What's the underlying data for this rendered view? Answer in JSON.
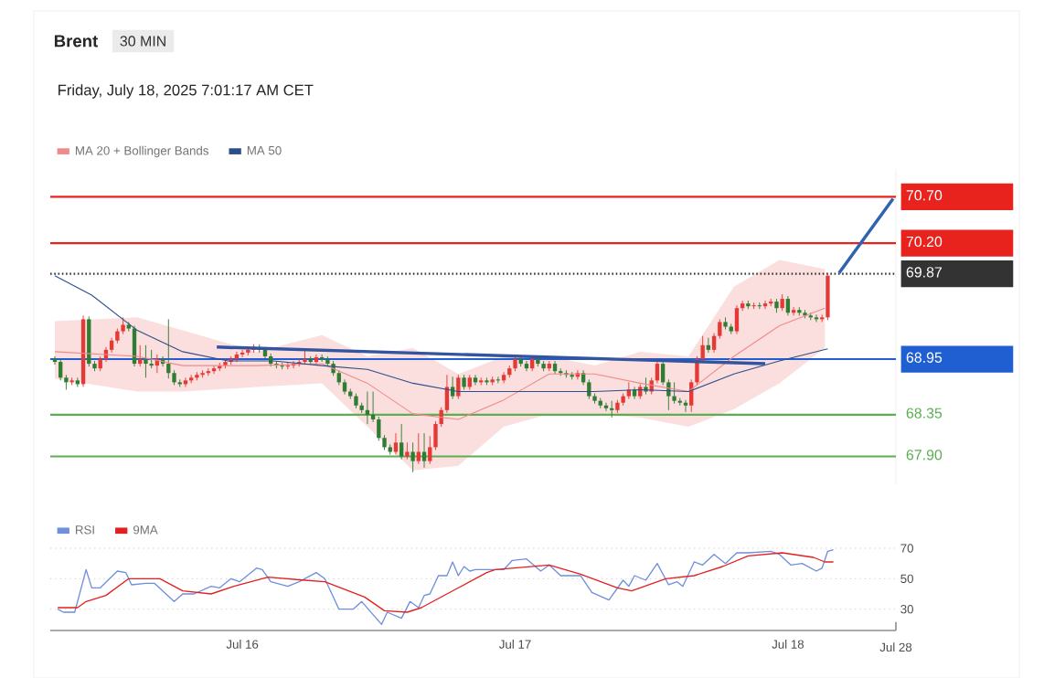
{
  "chart_data": [
    {
      "type": "candlestick",
      "title": "Brent",
      "subtitle": "Friday, July 18, 2025 7:01:17 AM CET",
      "annotations": [
        "30 MIN"
      ],
      "x": [
        "2025-07-15T07:30",
        "2025-07-15T08:00",
        "2025-07-15T08:30",
        "2025-07-15T09:00",
        "2025-07-15T09:30",
        "2025-07-15T10:00",
        "2025-07-15T10:30",
        "2025-07-15T11:00",
        "2025-07-15T11:30",
        "2025-07-15T12:00",
        "2025-07-15T12:30",
        "2025-07-15T13:00",
        "2025-07-15T13:30",
        "2025-07-15T14:00",
        "2025-07-15T14:30",
        "2025-07-15T15:00",
        "2025-07-15T15:30",
        "2025-07-15T16:00",
        "2025-07-15T16:30",
        "2025-07-15T17:00",
        "2025-07-15T17:30",
        "2025-07-15T18:00",
        "2025-07-15T18:30",
        "2025-07-15T19:00",
        "2025-07-15T19:30",
        "2025-07-15T20:00",
        "2025-07-15T20:30",
        "2025-07-15T21:00",
        "2025-07-15T21:30",
        "2025-07-15T22:00",
        "2025-07-15T22:30",
        "2025-07-15T23:00",
        "2025-07-15T23:30",
        "2025-07-16T00:00",
        "2025-07-16T00:30",
        "2025-07-16T01:00",
        "2025-07-16T01:30",
        "2025-07-16T02:00",
        "2025-07-16T02:30",
        "2025-07-16T03:00",
        "2025-07-16T03:30",
        "2025-07-16T04:00",
        "2025-07-16T04:30",
        "2025-07-16T05:00",
        "2025-07-16T05:30",
        "2025-07-16T06:00",
        "2025-07-16T06:30",
        "2025-07-16T07:00",
        "2025-07-16T07:30",
        "2025-07-16T08:00",
        "2025-07-16T08:30",
        "2025-07-16T09:00",
        "2025-07-16T09:30",
        "2025-07-16T10:00",
        "2025-07-16T10:30",
        "2025-07-16T11:00",
        "2025-07-16T11:30",
        "2025-07-16T12:00",
        "2025-07-16T12:30",
        "2025-07-16T13:00",
        "2025-07-16T13:30",
        "2025-07-16T14:00",
        "2025-07-16T14:30",
        "2025-07-16T15:00",
        "2025-07-16T15:30",
        "2025-07-16T16:00",
        "2025-07-16T16:30",
        "2025-07-16T17:00",
        "2025-07-16T17:30",
        "2025-07-16T18:00",
        "2025-07-16T18:30",
        "2025-07-16T19:00",
        "2025-07-16T19:30",
        "2025-07-16T20:00",
        "2025-07-16T20:30",
        "2025-07-16T21:00",
        "2025-07-16T21:30",
        "2025-07-16T22:00",
        "2025-07-16T22:30",
        "2025-07-16T23:00",
        "2025-07-16T23:30",
        "2025-07-17T00:00",
        "2025-07-17T00:30",
        "2025-07-17T01:00",
        "2025-07-17T01:30",
        "2025-07-17T02:00",
        "2025-07-17T02:30",
        "2025-07-17T03:00",
        "2025-07-17T03:30",
        "2025-07-17T04:00",
        "2025-07-17T04:30",
        "2025-07-17T05:00",
        "2025-07-17T05:30",
        "2025-07-17T06:00",
        "2025-07-17T06:30",
        "2025-07-17T07:00",
        "2025-07-17T07:30",
        "2025-07-17T08:00",
        "2025-07-17T08:30",
        "2025-07-17T09:00",
        "2025-07-17T09:30",
        "2025-07-17T10:00",
        "2025-07-17T10:30",
        "2025-07-17T11:00",
        "2025-07-17T11:30",
        "2025-07-17T12:00",
        "2025-07-17T12:30",
        "2025-07-17T13:00",
        "2025-07-17T13:30",
        "2025-07-17T14:00",
        "2025-07-17T14:30",
        "2025-07-17T15:00",
        "2025-07-17T15:30",
        "2025-07-17T16:00",
        "2025-07-17T16:30",
        "2025-07-17T17:00",
        "2025-07-17T17:30",
        "2025-07-17T18:00",
        "2025-07-17T18:30",
        "2025-07-17T19:00",
        "2025-07-17T19:30",
        "2025-07-17T20:00",
        "2025-07-17T20:30",
        "2025-07-17T21:00",
        "2025-07-17T21:30",
        "2025-07-17T22:00",
        "2025-07-17T22:30",
        "2025-07-17T23:00",
        "2025-07-17T23:30",
        "2025-07-18T00:00",
        "2025-07-18T00:30",
        "2025-07-18T01:00",
        "2025-07-18T01:30",
        "2025-07-18T02:00",
        "2025-07-18T02:30",
        "2025-07-18T03:00",
        "2025-07-18T03:30"
      ],
      "ohlc": [
        [
          68.95,
          68.98,
          68.89,
          68.92
        ],
        [
          68.92,
          68.95,
          68.72,
          68.75
        ],
        [
          68.75,
          68.78,
          68.62,
          68.7
        ],
        [
          68.7,
          68.75,
          68.67,
          68.72
        ],
        [
          68.72,
          68.75,
          68.65,
          68.68
        ],
        [
          68.68,
          69.42,
          68.65,
          69.38
        ],
        [
          69.38,
          69.41,
          68.87,
          68.9
        ],
        [
          68.9,
          68.93,
          68.82,
          68.85
        ],
        [
          68.85,
          68.98,
          68.82,
          68.95
        ],
        [
          68.95,
          69.08,
          68.92,
          69.05
        ],
        [
          69.05,
          69.18,
          69.02,
          69.15
        ],
        [
          69.15,
          69.28,
          69.12,
          69.25
        ],
        [
          69.25,
          69.4,
          69.22,
          69.32
        ],
        [
          69.32,
          69.35,
          69.25,
          69.28
        ],
        [
          69.28,
          69.31,
          68.87,
          68.9
        ],
        [
          68.9,
          69.1,
          68.87,
          68.95
        ],
        [
          68.95,
          69.1,
          68.75,
          68.9
        ],
        [
          68.9,
          69.05,
          68.85,
          68.88
        ],
        [
          68.88,
          69.0,
          68.8,
          68.95
        ],
        [
          68.95,
          68.98,
          68.87,
          68.9
        ],
        [
          68.9,
          69.38,
          68.74,
          68.8
        ],
        [
          68.8,
          68.83,
          68.67,
          68.7
        ],
        [
          68.7,
          68.73,
          68.65,
          68.68
        ],
        [
          68.68,
          68.75,
          68.65,
          68.72
        ],
        [
          68.72,
          68.78,
          68.69,
          68.75
        ],
        [
          68.75,
          68.81,
          68.72,
          68.78
        ],
        [
          68.78,
          68.83,
          68.75,
          68.8
        ],
        [
          68.8,
          68.85,
          68.77,
          68.82
        ],
        [
          68.82,
          68.88,
          68.79,
          68.85
        ],
        [
          68.85,
          68.91,
          68.82,
          68.88
        ],
        [
          68.88,
          68.95,
          68.85,
          68.92
        ],
        [
          68.92,
          68.98,
          68.89,
          68.95
        ],
        [
          68.95,
          69.03,
          68.92,
          69.0
        ],
        [
          69.0,
          69.05,
          68.97,
          69.02
        ],
        [
          69.02,
          69.08,
          68.99,
          69.05
        ],
        [
          69.05,
          69.11,
          69.02,
          69.08
        ],
        [
          69.08,
          69.11,
          69.02,
          69.05
        ],
        [
          69.05,
          69.08,
          68.95,
          68.98
        ],
        [
          68.98,
          69.01,
          68.87,
          68.9
        ],
        [
          68.9,
          68.93,
          68.85,
          68.88
        ],
        [
          68.88,
          68.91,
          68.84,
          68.87
        ],
        [
          68.87,
          68.91,
          68.84,
          68.88
        ],
        [
          68.88,
          68.93,
          68.85,
          68.9
        ],
        [
          68.9,
          68.95,
          68.87,
          68.92
        ],
        [
          68.92,
          69.05,
          68.89,
          68.95
        ],
        [
          68.95,
          68.98,
          68.89,
          68.92
        ],
        [
          68.92,
          69.0,
          68.89,
          68.97
        ],
        [
          68.97,
          69.0,
          68.92,
          68.95
        ],
        [
          68.95,
          68.98,
          68.87,
          68.9
        ],
        [
          68.9,
          68.93,
          68.77,
          68.8
        ],
        [
          68.8,
          68.83,
          68.67,
          68.7
        ],
        [
          68.7,
          68.73,
          68.57,
          68.6
        ],
        [
          68.6,
          68.63,
          68.52,
          68.55
        ],
        [
          68.55,
          68.58,
          68.42,
          68.45
        ],
        [
          68.45,
          68.48,
          68.37,
          68.4
        ],
        [
          68.4,
          68.6,
          68.25,
          68.35
        ],
        [
          68.35,
          68.6,
          68.27,
          68.3
        ],
        [
          68.3,
          68.33,
          68.07,
          68.1
        ],
        [
          68.1,
          68.13,
          67.97,
          68.0
        ],
        [
          68.0,
          68.03,
          67.92,
          67.95
        ],
        [
          67.95,
          68.15,
          67.92,
          68.05
        ],
        [
          68.05,
          68.25,
          67.87,
          67.9
        ],
        [
          67.9,
          68.05,
          67.87,
          67.95
        ],
        [
          67.95,
          68.05,
          67.73,
          67.85
        ],
        [
          67.85,
          68.15,
          67.82,
          67.95
        ],
        [
          67.95,
          68.15,
          67.78,
          67.85
        ],
        [
          67.85,
          68.12,
          67.82,
          68.0
        ],
        [
          68.0,
          68.28,
          67.97,
          68.25
        ],
        [
          68.25,
          68.43,
          68.22,
          68.4
        ],
        [
          68.4,
          68.78,
          68.37,
          68.65
        ],
        [
          68.65,
          68.76,
          68.52,
          68.55
        ],
        [
          68.55,
          68.78,
          68.52,
          68.75
        ],
        [
          68.75,
          68.78,
          68.62,
          68.65
        ],
        [
          68.65,
          68.78,
          68.62,
          68.75
        ],
        [
          68.75,
          68.78,
          68.67,
          68.7
        ],
        [
          68.7,
          68.75,
          68.67,
          68.72
        ],
        [
          68.72,
          68.75,
          68.67,
          68.7
        ],
        [
          68.7,
          68.76,
          68.67,
          68.73
        ],
        [
          68.73,
          68.76,
          68.69,
          68.72
        ],
        [
          68.72,
          68.81,
          68.69,
          68.78
        ],
        [
          68.78,
          68.88,
          68.75,
          68.85
        ],
        [
          68.85,
          68.98,
          68.82,
          68.95
        ],
        [
          68.95,
          68.98,
          68.87,
          68.9
        ],
        [
          68.9,
          68.93,
          68.82,
          68.85
        ],
        [
          68.85,
          68.98,
          68.82,
          68.95
        ],
        [
          68.95,
          68.98,
          68.87,
          68.9
        ],
        [
          68.9,
          68.93,
          68.82,
          68.85
        ],
        [
          68.85,
          68.93,
          68.82,
          68.9
        ],
        [
          68.9,
          68.93,
          68.79,
          68.82
        ],
        [
          68.82,
          68.85,
          68.77,
          68.8
        ],
        [
          68.8,
          68.83,
          68.75,
          68.78
        ],
        [
          68.78,
          68.81,
          68.73,
          68.76
        ],
        [
          68.76,
          68.83,
          68.73,
          68.8
        ],
        [
          68.8,
          68.83,
          68.67,
          68.7
        ],
        [
          68.7,
          68.73,
          68.52,
          68.55
        ],
        [
          68.55,
          68.58,
          68.47,
          68.5
        ],
        [
          68.5,
          68.53,
          68.42,
          68.45
        ],
        [
          68.45,
          68.48,
          68.39,
          68.42
        ],
        [
          68.42,
          68.5,
          68.32,
          68.4
        ],
        [
          68.4,
          68.51,
          68.37,
          68.48
        ],
        [
          68.48,
          68.58,
          68.45,
          68.55
        ],
        [
          68.55,
          68.7,
          68.52,
          68.62
        ],
        [
          68.62,
          68.65,
          68.52,
          68.55
        ],
        [
          68.55,
          68.68,
          68.52,
          68.65
        ],
        [
          68.65,
          68.75,
          68.57,
          68.6
        ],
        [
          68.6,
          68.75,
          68.57,
          68.72
        ],
        [
          68.72,
          68.93,
          68.69,
          68.9
        ],
        [
          68.9,
          68.93,
          68.67,
          68.7
        ],
        [
          68.7,
          68.73,
          68.4,
          68.55
        ],
        [
          68.55,
          68.7,
          68.47,
          68.5
        ],
        [
          68.5,
          68.53,
          68.45,
          68.48
        ],
        [
          68.48,
          68.51,
          68.38,
          68.45
        ],
        [
          68.45,
          68.73,
          68.38,
          68.7
        ],
        [
          68.7,
          68.98,
          68.67,
          68.95
        ],
        [
          68.95,
          69.2,
          68.92,
          69.1
        ],
        [
          69.1,
          69.18,
          69.02,
          69.05
        ],
        [
          69.05,
          69.23,
          69.02,
          69.2
        ],
        [
          69.2,
          69.38,
          69.17,
          69.35
        ],
        [
          69.35,
          69.4,
          69.27,
          69.3
        ],
        [
          69.3,
          69.33,
          69.22,
          69.25
        ],
        [
          69.25,
          69.53,
          69.22,
          69.5
        ],
        [
          69.5,
          69.58,
          69.47,
          69.55
        ],
        [
          69.55,
          69.58,
          69.49,
          69.52
        ],
        [
          69.52,
          69.56,
          69.49,
          69.53
        ],
        [
          69.53,
          69.56,
          69.49,
          69.52
        ],
        [
          69.52,
          69.58,
          69.49,
          69.55
        ],
        [
          69.55,
          69.6,
          69.52,
          69.57
        ],
        [
          69.57,
          69.6,
          69.45,
          69.5
        ],
        [
          69.5,
          69.65,
          69.47,
          69.6
        ],
        [
          69.6,
          69.63,
          69.42,
          69.45
        ],
        [
          69.45,
          69.51,
          69.42,
          69.48
        ],
        [
          69.48,
          69.51,
          69.42,
          69.45
        ],
        [
          69.45,
          69.48,
          69.39,
          69.42
        ],
        [
          69.42,
          69.45,
          69.37,
          69.4
        ],
        [
          69.4,
          69.43,
          69.35,
          69.38
        ],
        [
          69.38,
          69.43,
          69.35,
          69.4
        ],
        [
          69.4,
          69.88,
          69.37,
          69.85
        ]
      ],
      "series": [
        {
          "name": "MA 20 + Bollinger Bands",
          "type": "line",
          "color": "#f08a8a",
          "x": [
            "2025-07-15T07:30",
            "2025-07-15T14:45",
            "2025-07-15T18:45",
            "2025-07-16T01:15",
            "2025-07-16T07:00",
            "2025-07-16T11:00",
            "2025-07-16T15:00",
            "2025-07-16T19:00",
            "2025-07-16T23:00",
            "2025-07-17T03:00",
            "2025-07-17T07:00",
            "2025-07-17T11:00",
            "2025-07-17T15:15",
            "2025-07-17T19:15",
            "2025-07-17T23:15",
            "2025-07-18T03:15"
          ],
          "values": [
            69.03,
            68.98,
            68.88,
            68.88,
            68.9,
            68.69,
            68.36,
            68.3,
            68.51,
            68.79,
            68.79,
            68.69,
            68.6,
            68.98,
            69.31,
            69.5
          ],
          "upper": [
            69.36,
            69.4,
            69.26,
            69.03,
            69.21,
            68.98,
            69.07,
            68.79,
            68.98,
            68.98,
            68.88,
            69.03,
            68.98,
            69.73,
            70.02,
            69.92
          ],
          "lower": [
            68.74,
            68.6,
            68.6,
            68.65,
            68.69,
            68.22,
            67.75,
            67.8,
            68.22,
            68.36,
            68.36,
            68.32,
            68.22,
            68.41,
            68.69,
            69.07
          ]
        },
        {
          "name": "MA 50",
          "type": "line",
          "color": "#2b4f8a",
          "x": [
            "2025-07-15T07:30",
            "2025-07-15T10:45",
            "2025-07-15T14:45",
            "2025-07-15T18:45",
            "2025-07-15T22:45",
            "2025-07-16T02:45",
            "2025-07-16T07:00",
            "2025-07-16T11:00",
            "2025-07-16T15:00",
            "2025-07-16T19:00",
            "2025-07-16T23:00",
            "2025-07-17T03:00",
            "2025-07-17T07:00",
            "2025-07-17T11:00",
            "2025-07-17T15:15",
            "2025-07-17T19:15",
            "2025-07-17T23:15",
            "2025-07-18T03:30"
          ],
          "values": [
            69.85,
            69.64,
            69.26,
            69.03,
            68.93,
            68.93,
            68.88,
            68.84,
            68.69,
            68.6,
            68.6,
            68.6,
            68.6,
            68.62,
            68.6,
            68.79,
            68.93,
            69.06
          ]
        },
        {
          "type": "line",
          "color": "#3355a0",
          "x": [
            "2025-07-15T21:45",
            "2025-07-17T22:00"
          ],
          "values": [
            69.08,
            68.9
          ]
        },
        {
          "type": "line",
          "color": "#2f63b0",
          "x": [
            "2025-07-18T04:30",
            "2025-07-18T09:15"
          ],
          "values": [
            69.88,
            70.68
          ]
        }
      ],
      "ref_lines": [
        {
          "axis": "y",
          "value": 70.7,
          "color": "#e8221c"
        },
        {
          "axis": "y",
          "value": 70.2,
          "color": "#e8221c"
        },
        {
          "axis": "y",
          "value": 69.87,
          "color": "#333333",
          "line_style": "dotted"
        },
        {
          "axis": "y",
          "value": 68.95,
          "color": "#1f5fd1"
        },
        {
          "axis": "y",
          "value": 68.35,
          "color": "#5cae52"
        },
        {
          "axis": "y",
          "value": 67.9,
          "color": "#5cae52"
        }
      ],
      "xlim": [
        "2025-07-15T07:06",
        "2025-07-18T09:30"
      ],
      "ylim": [
        67.6,
        71.0
      ],
      "yticks": [
        {
          "value": 67.9,
          "label": "67.90"
        },
        {
          "value": 68.35,
          "label": "68.35"
        },
        {
          "value": 68.95,
          "label": "68.95"
        },
        {
          "value": 69.87,
          "label": "69.87"
        },
        {
          "value": 70.2,
          "label": "70.20"
        },
        {
          "value": 70.7,
          "label": "70.70"
        }
      ],
      "legend": "top left"
    },
    {
      "type": "line",
      "series": [
        {
          "name": "RSI",
          "color": "#6f8fdc",
          "x": [
            "2025-07-15T07:45",
            "2025-07-15T08:15",
            "2025-07-15T09:15",
            "2025-07-15T10:15",
            "2025-07-15T10:45",
            "2025-07-15T11:30",
            "2025-07-15T13:00",
            "2025-07-15T13:45",
            "2025-07-15T14:15",
            "2025-07-15T15:30",
            "2025-07-15T16:15",
            "2025-07-15T18:00",
            "2025-07-15T18:45",
            "2025-07-15T19:45",
            "2025-07-15T21:15",
            "2025-07-15T22:00",
            "2025-07-15T23:00",
            "2025-07-15T23:45",
            "2025-07-16T01:15",
            "2025-07-16T01:45",
            "2025-07-16T02:30",
            "2025-07-16T04:00",
            "2025-07-16T05:00",
            "2025-07-16T06:30",
            "2025-07-16T07:15",
            "2025-07-16T08:30",
            "2025-07-16T09:45",
            "2025-07-16T10:30",
            "2025-07-16T12:15",
            "2025-07-16T12:45",
            "2025-07-16T14:00",
            "2025-07-16T14:45",
            "2025-07-16T15:30",
            "2025-07-16T16:00",
            "2025-07-16T16:30",
            "2025-07-16T17:15",
            "2025-07-16T18:00",
            "2025-07-16T18:30",
            "2025-07-16T19:00",
            "2025-07-16T19:30",
            "2025-07-16T20:00",
            "2025-07-16T20:30",
            "2025-07-16T21:30",
            "2025-07-16T23:00",
            "2025-07-16T23:45",
            "2025-07-17T01:00",
            "2025-07-17T02:15",
            "2025-07-17T03:00",
            "2025-07-17T04:00",
            "2025-07-17T05:45",
            "2025-07-17T06:45",
            "2025-07-17T08:15",
            "2025-07-17T09:30",
            "2025-07-17T10:00",
            "2025-07-17T10:30",
            "2025-07-17T11:30",
            "2025-07-17T12:30",
            "2025-07-17T13:30",
            "2025-07-17T14:15",
            "2025-07-17T14:45",
            "2025-07-17T15:45",
            "2025-07-17T16:30",
            "2025-07-17T17:30",
            "2025-07-17T18:30",
            "2025-07-17T19:30",
            "2025-07-17T20:30",
            "2025-07-17T22:30",
            "2025-07-17T23:15",
            "2025-07-18T00:15",
            "2025-07-18T01:15",
            "2025-07-18T02:30",
            "2025-07-18T03:00",
            "2025-07-18T03:30",
            "2025-07-18T04:00"
          ],
          "values": [
            30,
            28,
            28,
            56,
            44,
            44,
            55,
            54,
            46,
            47,
            47,
            35,
            40,
            40,
            45,
            44,
            50,
            48,
            57,
            56,
            48,
            45,
            48,
            54,
            50,
            30,
            30,
            35,
            20,
            28,
            24,
            35,
            31,
            39,
            40,
            52,
            52,
            61,
            52,
            58,
            55,
            56,
            56,
            56,
            62,
            63,
            55,
            59,
            52,
            52,
            41,
            36,
            49,
            45,
            52,
            49,
            60,
            46,
            48,
            45,
            61,
            59,
            66,
            60,
            67,
            67,
            68,
            66,
            59,
            60,
            55,
            57,
            68,
            69
          ]
        },
        {
          "name": "9MA",
          "color": "#e32020",
          "x": [
            "2025-07-15T07:45",
            "2025-07-15T09:30",
            "2025-07-15T10:15",
            "2025-07-15T12:00",
            "2025-07-15T14:00",
            "2025-07-15T16:45",
            "2025-07-15T18:45",
            "2025-07-15T21:15",
            "2025-07-15T23:15",
            "2025-07-16T02:15",
            "2025-07-16T05:30",
            "2025-07-16T07:15",
            "2025-07-16T10:45",
            "2025-07-16T12:30",
            "2025-07-16T14:30",
            "2025-07-16T15:45",
            "2025-07-16T18:45",
            "2025-07-16T21:30",
            "2025-07-16T22:15",
            "2025-07-17T03:00",
            "2025-07-17T05:45",
            "2025-07-17T09:00",
            "2025-07-17T10:15",
            "2025-07-17T13:15",
            "2025-07-17T15:45",
            "2025-07-17T18:15",
            "2025-07-17T20:30",
            "2025-07-17T23:30",
            "2025-07-18T02:15",
            "2025-07-18T03:15",
            "2025-07-18T04:00"
          ],
          "values": [
            31,
            31,
            35,
            39,
            50,
            50,
            42,
            40,
            45,
            51,
            49,
            48,
            38,
            29,
            28,
            31,
            43,
            54,
            56,
            59,
            53,
            44,
            42,
            50,
            52,
            58,
            65,
            67,
            64,
            61,
            61
          ]
        }
      ],
      "xlim": [
        "2025-07-15T07:06",
        "2025-07-18T09:30"
      ],
      "xticks": [
        {
          "value": "2025-07-16",
          "label": "Jul 16"
        },
        {
          "value": "2025-07-17",
          "label": "Jul 17"
        },
        {
          "value": "2025-07-18",
          "label": "Jul 18"
        }
      ],
      "annotations": [
        "Jul 28"
      ],
      "ylim": [
        16,
        70
      ],
      "yticks": [
        30,
        50,
        70
      ],
      "grid": "y",
      "legend": "top left"
    }
  ]
}
